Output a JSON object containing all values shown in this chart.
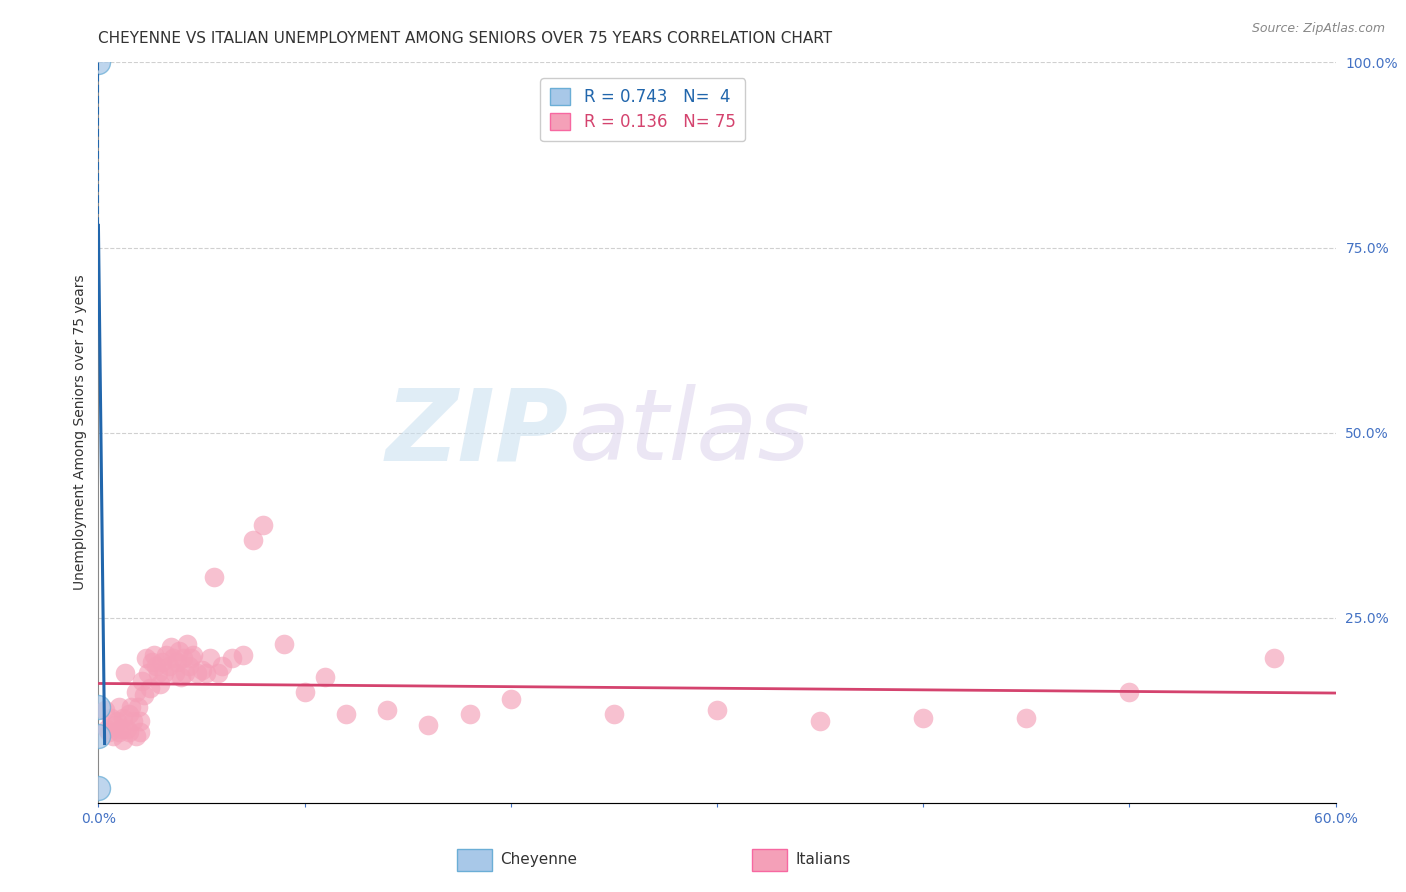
{
  "title": "CHEYENNE VS ITALIAN UNEMPLOYMENT AMONG SENIORS OVER 75 YEARS CORRELATION CHART",
  "source": "Source: ZipAtlas.com",
  "ylabel": "Unemployment Among Seniors over 75 years",
  "xlim": [
    0.0,
    0.6
  ],
  "ylim": [
    0.0,
    1.0
  ],
  "xticks": [
    0.0,
    0.1,
    0.2,
    0.3,
    0.4,
    0.5,
    0.6
  ],
  "xticklabels": [
    "0.0%",
    "",
    "",
    "",
    "",
    "",
    "60.0%"
  ],
  "yticklabels_right": [
    "",
    "25.0%",
    "50.0%",
    "75.0%",
    "100.0%"
  ],
  "cheyenne_color": "#a8c8e8",
  "italian_color": "#f4a0b8",
  "cheyenne_edge_color": "#6baed6",
  "italian_edge_color": "#f768a1",
  "cheyenne_line_color": "#2166ac",
  "italian_line_color": "#d4436e",
  "cheyenne_R": 0.743,
  "cheyenne_N": 4,
  "italian_R": 0.136,
  "italian_N": 75,
  "watermark_zip": "ZIP",
  "watermark_atlas": "atlas",
  "background_color": "#ffffff",
  "grid_color": "#d0d0d0",
  "cheyenne_points_x": [
    0.0,
    0.0,
    0.0,
    0.0
  ],
  "cheyenne_points_y": [
    1.0,
    0.13,
    0.09,
    0.02
  ],
  "italian_points_x": [
    0.003,
    0.004,
    0.005,
    0.006,
    0.007,
    0.008,
    0.009,
    0.01,
    0.01,
    0.011,
    0.012,
    0.012,
    0.013,
    0.014,
    0.015,
    0.015,
    0.016,
    0.017,
    0.018,
    0.018,
    0.019,
    0.02,
    0.02,
    0.021,
    0.022,
    0.023,
    0.024,
    0.025,
    0.026,
    0.027,
    0.028,
    0.029,
    0.03,
    0.031,
    0.032,
    0.033,
    0.034,
    0.035,
    0.036,
    0.037,
    0.038,
    0.039,
    0.04,
    0.041,
    0.042,
    0.043,
    0.044,
    0.045,
    0.046,
    0.048,
    0.05,
    0.052,
    0.054,
    0.056,
    0.058,
    0.06,
    0.065,
    0.07,
    0.075,
    0.08,
    0.09,
    0.1,
    0.11,
    0.12,
    0.14,
    0.16,
    0.18,
    0.2,
    0.25,
    0.3,
    0.35,
    0.4,
    0.45,
    0.5,
    0.57
  ],
  "italian_points_y": [
    0.125,
    0.1,
    0.095,
    0.115,
    0.09,
    0.105,
    0.11,
    0.095,
    0.13,
    0.1,
    0.115,
    0.085,
    0.175,
    0.1,
    0.12,
    0.095,
    0.13,
    0.11,
    0.15,
    0.09,
    0.13,
    0.095,
    0.11,
    0.165,
    0.145,
    0.195,
    0.175,
    0.155,
    0.19,
    0.2,
    0.185,
    0.175,
    0.16,
    0.19,
    0.175,
    0.2,
    0.185,
    0.21,
    0.195,
    0.175,
    0.19,
    0.205,
    0.17,
    0.195,
    0.175,
    0.215,
    0.185,
    0.195,
    0.2,
    0.175,
    0.18,
    0.175,
    0.195,
    0.305,
    0.175,
    0.185,
    0.195,
    0.2,
    0.355,
    0.375,
    0.215,
    0.15,
    0.17,
    0.12,
    0.125,
    0.105,
    0.12,
    0.14,
    0.12,
    0.125,
    0.11,
    0.115,
    0.115,
    0.15,
    0.195
  ],
  "title_fontsize": 11,
  "axis_label_fontsize": 10,
  "tick_fontsize": 10,
  "legend_fontsize": 12,
  "marker_size": 200
}
